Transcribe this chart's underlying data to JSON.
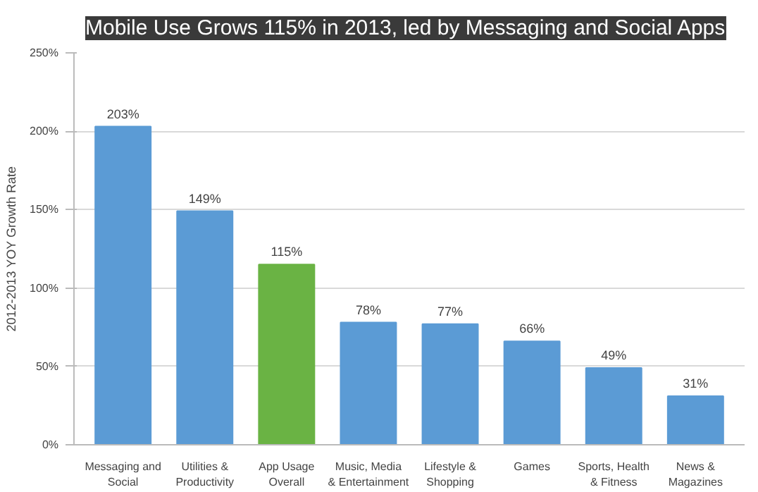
{
  "chart_data": {
    "type": "bar",
    "title": "Mobile Use Grows 115% in 2013, led by Messaging and Social Apps",
    "ylabel": "2012-2013 YOY Growth Rate",
    "categories": [
      "Messaging and Social",
      "Utilities & Productivity",
      "App Usage Overall",
      "Music, Media & Entertainment",
      "Lifestyle & Shopping",
      "Games",
      "Sports, Health & Fitness",
      "News & Magazines"
    ],
    "values": [
      203,
      149,
      115,
      78,
      77,
      66,
      49,
      31
    ],
    "colors": [
      "#5b9bd5",
      "#5b9bd5",
      "#6ab344",
      "#5b9bd5",
      "#5b9bd5",
      "#5b9bd5",
      "#5b9bd5",
      "#5b9bd5"
    ],
    "value_labels": [
      "203%",
      "149%",
      "115%",
      "78%",
      "77%",
      "66%",
      "49%",
      "31%"
    ],
    "ylim": [
      0,
      250
    ],
    "yticks": [
      {
        "value": 0,
        "label": "0%"
      },
      {
        "value": 50,
        "label": "50%"
      },
      {
        "value": 100,
        "label": "100%"
      },
      {
        "value": 150,
        "label": "150%"
      },
      {
        "value": 200,
        "label": "200%"
      },
      {
        "value": 250,
        "label": "250%"
      }
    ],
    "grid": "y"
  }
}
